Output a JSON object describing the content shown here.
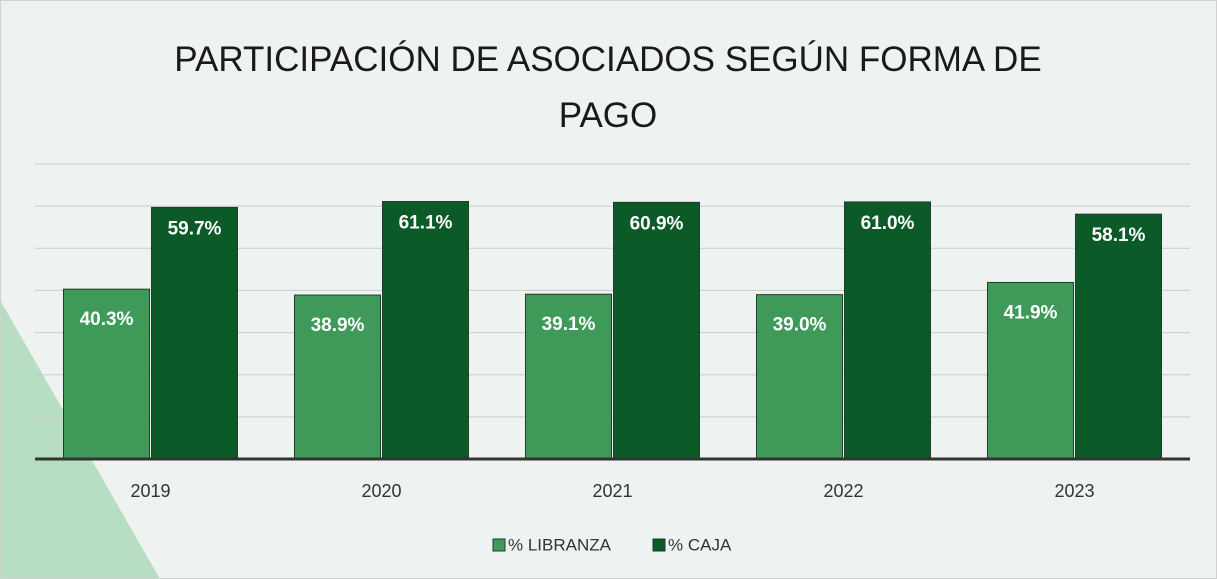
{
  "chart_data": {
    "type": "bar",
    "title": "PARTICIPACIÓN DE ASOCIADOS SEGÚN FORMA DE PAGO",
    "categories": [
      "2019",
      "2020",
      "2021",
      "2022",
      "2023"
    ],
    "series": [
      {
        "name": "% LIBRANZA",
        "color": "#3f9a5a",
        "values": [
          40.3,
          38.9,
          39.1,
          39.0,
          41.9
        ],
        "value_labels": [
          "40.3%",
          "38.9%",
          "39.1%",
          "39.0%",
          "41.9%"
        ]
      },
      {
        "name": "% CAJA",
        "color": "#0b5a27",
        "values": [
          59.7,
          61.1,
          60.9,
          61.0,
          58.1
        ],
        "value_labels": [
          "59.7%",
          "61.1%",
          "60.9%",
          "61.0%",
          "58.1%"
        ]
      }
    ],
    "ylim": [
      0,
      70
    ],
    "yticks": [
      0,
      10,
      20,
      30,
      40,
      50,
      60,
      70
    ],
    "grid": true,
    "legend": "bottom"
  }
}
